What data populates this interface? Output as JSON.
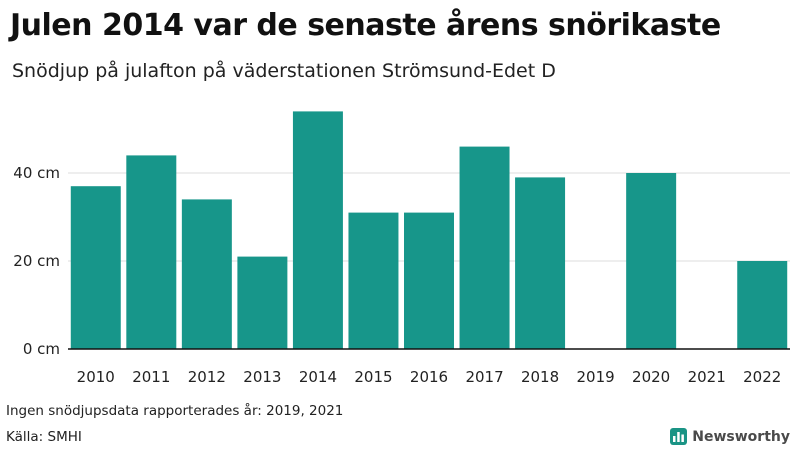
{
  "title": "Julen 2014 var de senaste årens snörikaste",
  "subtitle": "Snödjup på julafton på väderstationen Strömsund-Edet D",
  "note": "Ingen snödjupsdata rapporterades år: 2019, 2021",
  "source": "Källa: SMHI",
  "brand": {
    "name": "Newsworthy",
    "icon": "bar-chart-logo-icon",
    "color": "#1a9485"
  },
  "chart_data": {
    "type": "bar",
    "categories": [
      "2010",
      "2011",
      "2012",
      "2013",
      "2014",
      "2015",
      "2016",
      "2017",
      "2018",
      "2019",
      "2020",
      "2021",
      "2022"
    ],
    "values": [
      37,
      44,
      34,
      21,
      54,
      31,
      31,
      46,
      39,
      null,
      40,
      null,
      20
    ],
    "ylabel": "",
    "ylim": [
      0,
      58
    ],
    "yticks": [
      0,
      20,
      40
    ],
    "ytick_labels": [
      "0 cm",
      "20 cm",
      "40 cm"
    ],
    "grid": true,
    "bar_color": "#17968a",
    "grid_color": "#dddddd"
  }
}
